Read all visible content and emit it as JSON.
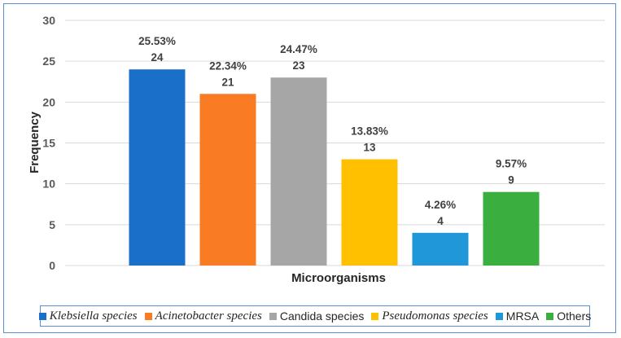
{
  "chart_data": {
    "type": "bar",
    "categories": [
      "Klebsiella species",
      "Acinetobacter species",
      "Candida species",
      "Pseudomonas species",
      "MRSA",
      "Others"
    ],
    "values": [
      24,
      21,
      23,
      13,
      4,
      9
    ],
    "percent_labels": [
      "25.53%",
      "22.34%",
      "24.47%",
      "13.83%",
      "4.26%",
      "9.57%"
    ],
    "value_labels": [
      "24",
      "21",
      "23",
      "13",
      "4",
      "9"
    ],
    "colors": [
      "#1a6fc9",
      "#f97b24",
      "#a6a6a6",
      "#ffc000",
      "#1f97d8",
      "#3aae3f"
    ],
    "italic_legend": [
      true,
      true,
      false,
      true,
      false,
      false
    ],
    "xlabel": "Microorganisms",
    "ylabel": "Frequency",
    "ylim": [
      0,
      30
    ],
    "yticks": [
      "0",
      "5",
      "10",
      "15",
      "20",
      "25",
      "30"
    ],
    "grid": true,
    "legend_position": "bottom"
  }
}
